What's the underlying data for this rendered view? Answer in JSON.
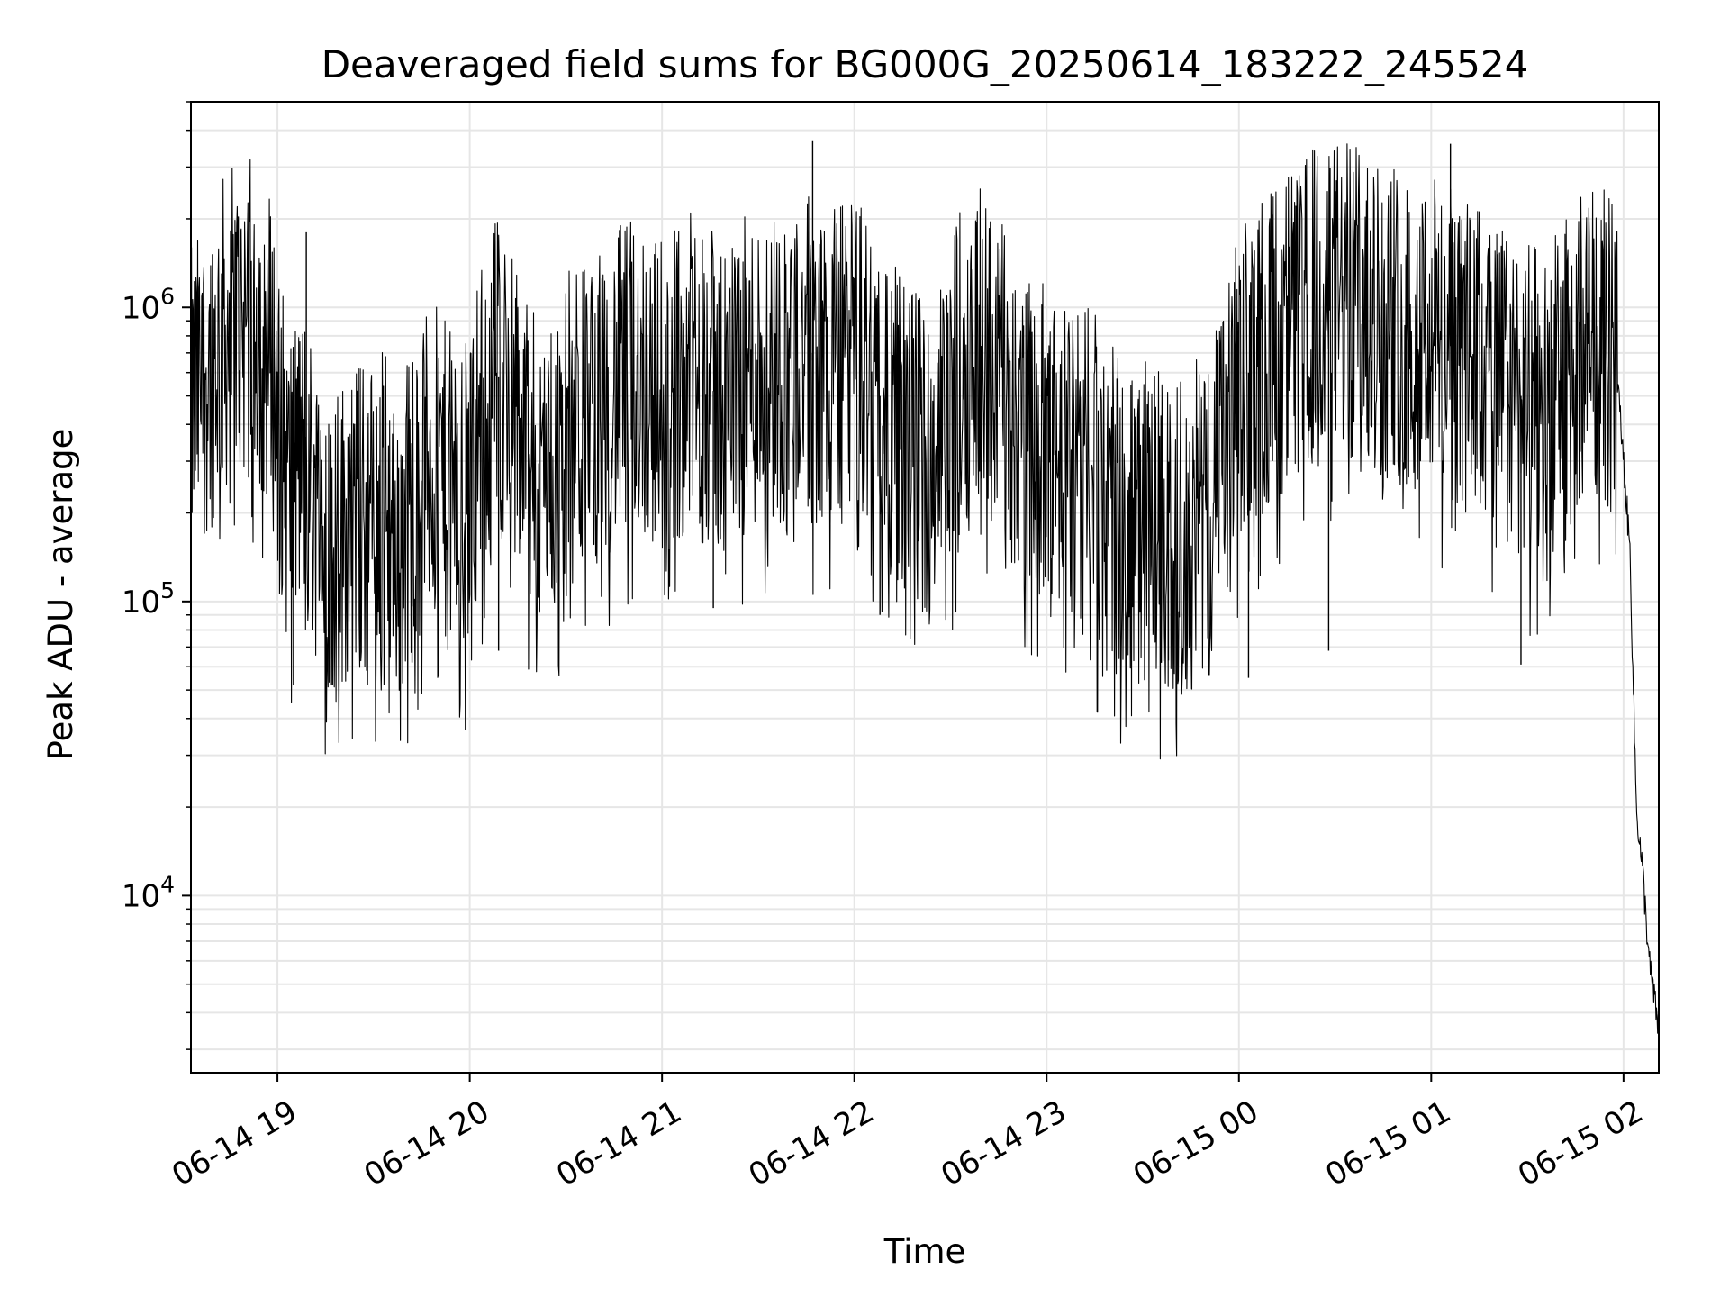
{
  "chart_data": {
    "type": "line",
    "title": "Deaveraged field sums for BG000G_20250614_183222_245524",
    "xlabel": "Time",
    "ylabel": "Peak ADU - average",
    "yscale": "log",
    "xlim": [
      "2025-06-14 18:33",
      "2025-06-15 02:11"
    ],
    "ylim": [
      2500,
      5000000
    ],
    "grid": true,
    "line_color": "#000000",
    "grid_color": "#e6e6e6",
    "x_ticks": [
      {
        "label": "06-14 19",
        "t": "2025-06-14 19:00"
      },
      {
        "label": "06-14 20",
        "t": "2025-06-14 20:00"
      },
      {
        "label": "06-14 21",
        "t": "2025-06-14 21:00"
      },
      {
        "label": "06-14 22",
        "t": "2025-06-14 22:00"
      },
      {
        "label": "06-14 23",
        "t": "2025-06-14 23:00"
      },
      {
        "label": "06-15 00",
        "t": "2025-06-15 00:00"
      },
      {
        "label": "06-15 01",
        "t": "2025-06-15 01:00"
      },
      {
        "label": "06-15 02",
        "t": "2025-06-15 02:00"
      }
    ],
    "y_ticks": [
      {
        "value": 10000,
        "base": "10",
        "exp": "4"
      },
      {
        "value": 100000,
        "base": "10",
        "exp": "5"
      },
      {
        "value": 1000000,
        "base": "10",
        "exp": "6"
      }
    ],
    "series": [
      {
        "x": [
          "2025-06-14 18:33",
          "2025-06-14 18:38",
          "2025-06-14 18:43",
          "2025-06-14 18:48",
          "2025-06-14 18:53",
          "2025-06-14 18:58",
          "2025-06-14 19:03",
          "2025-06-14 19:08",
          "2025-06-14 19:13",
          "2025-06-14 19:18",
          "2025-06-14 19:23",
          "2025-06-14 19:28",
          "2025-06-14 19:33",
          "2025-06-14 19:38",
          "2025-06-14 19:43",
          "2025-06-14 19:48",
          "2025-06-14 19:53",
          "2025-06-14 19:58",
          "2025-06-14 20:03",
          "2025-06-14 20:08",
          "2025-06-14 20:13",
          "2025-06-14 20:18",
          "2025-06-14 20:23",
          "2025-06-14 20:28",
          "2025-06-14 20:33",
          "2025-06-14 20:38",
          "2025-06-14 20:43",
          "2025-06-14 20:48",
          "2025-06-14 20:53",
          "2025-06-14 20:58",
          "2025-06-14 21:03",
          "2025-06-14 21:08",
          "2025-06-14 21:13",
          "2025-06-14 21:18",
          "2025-06-14 21:23",
          "2025-06-14 21:28",
          "2025-06-14 21:33",
          "2025-06-14 21:38",
          "2025-06-14 21:43",
          "2025-06-14 21:48",
          "2025-06-14 21:53",
          "2025-06-14 21:58",
          "2025-06-14 22:03",
          "2025-06-14 22:08",
          "2025-06-14 22:13",
          "2025-06-14 22:18",
          "2025-06-14 22:23",
          "2025-06-14 22:28",
          "2025-06-14 22:33",
          "2025-06-14 22:38",
          "2025-06-14 22:43",
          "2025-06-14 22:48",
          "2025-06-14 22:53",
          "2025-06-14 22:58",
          "2025-06-14 23:03",
          "2025-06-14 23:08",
          "2025-06-14 23:13",
          "2025-06-14 23:18",
          "2025-06-14 23:23",
          "2025-06-14 23:28",
          "2025-06-14 23:33",
          "2025-06-14 23:38",
          "2025-06-14 23:43",
          "2025-06-14 23:48",
          "2025-06-14 23:53",
          "2025-06-14 23:58",
          "2025-06-15 00:03",
          "2025-06-15 00:08",
          "2025-06-15 00:13",
          "2025-06-15 00:18",
          "2025-06-15 00:23",
          "2025-06-15 00:28",
          "2025-06-15 00:33",
          "2025-06-15 00:38",
          "2025-06-15 00:43",
          "2025-06-15 00:48",
          "2025-06-15 00:53",
          "2025-06-15 00:58",
          "2025-06-15 01:03",
          "2025-06-15 01:08",
          "2025-06-15 01:13",
          "2025-06-15 01:18",
          "2025-06-15 01:23",
          "2025-06-15 01:28",
          "2025-06-15 01:33",
          "2025-06-15 01:38",
          "2025-06-15 01:43",
          "2025-06-15 01:48",
          "2025-06-15 01:53",
          "2025-06-15 01:58",
          "2025-06-15 02:00",
          "2025-06-15 02:02",
          "2025-06-15 02:04",
          "2025-06-15 02:06",
          "2025-06-15 02:08",
          "2025-06-15 02:11"
        ],
        "values": [
          450000,
          600000,
          800000,
          900000,
          950000,
          700000,
          250000,
          300000,
          200000,
          150000,
          200000,
          180000,
          220000,
          150000,
          250000,
          300000,
          250000,
          200000,
          400000,
          600000,
          500000,
          300000,
          250000,
          350000,
          400000,
          450000,
          500000,
          550000,
          600000,
          500000,
          550000,
          600000,
          550000,
          500000,
          550000,
          600000,
          650000,
          600000,
          700000,
          650000,
          600000,
          700000,
          650000,
          500000,
          400000,
          350000,
          300000,
          400000,
          600000,
          800000,
          700000,
          500000,
          400000,
          350000,
          300000,
          300000,
          280000,
          250000,
          200000,
          180000,
          200000,
          150000,
          180000,
          200000,
          250000,
          400000,
          600000,
          700000,
          800000,
          900000,
          1000000,
          1100000,
          1050000,
          1000000,
          950000,
          900000,
          850000,
          900000,
          800000,
          700000,
          650000,
          600000,
          550000,
          500000,
          450000,
          500000,
          600000,
          750000,
          850000,
          600000,
          300000,
          150000,
          20000,
          12000,
          6000,
          3500
        ],
        "spikes_high": [
          {
            "x": "2025-06-14 18:47",
            "y": 1800000
          },
          {
            "x": "2025-06-14 19:09",
            "y": 1800000
          },
          {
            "x": "2025-06-14 21:47",
            "y": 3700000
          },
          {
            "x": "2025-06-14 22:38",
            "y": 1950000
          },
          {
            "x": "2025-06-14 23:59",
            "y": 1600000
          },
          {
            "x": "2025-06-15 00:33",
            "y": 1900000
          },
          {
            "x": "2025-06-15 01:06",
            "y": 3600000
          }
        ],
        "spikes_low": [
          {
            "x": "2025-06-14 19:05",
            "y": 52000
          },
          {
            "x": "2025-06-14 19:42",
            "y": 62000
          },
          {
            "x": "2025-06-14 20:09",
            "y": 68000
          },
          {
            "x": "2025-06-14 21:16",
            "y": 95000
          },
          {
            "x": "2025-06-14 22:08",
            "y": 90000
          },
          {
            "x": "2025-06-14 23:38",
            "y": 63000
          },
          {
            "x": "2025-06-15 00:03",
            "y": 55000
          },
          {
            "x": "2025-06-15 00:28",
            "y": 68000
          },
          {
            "x": "2025-06-15 01:28",
            "y": 61000
          }
        ]
      }
    ]
  }
}
